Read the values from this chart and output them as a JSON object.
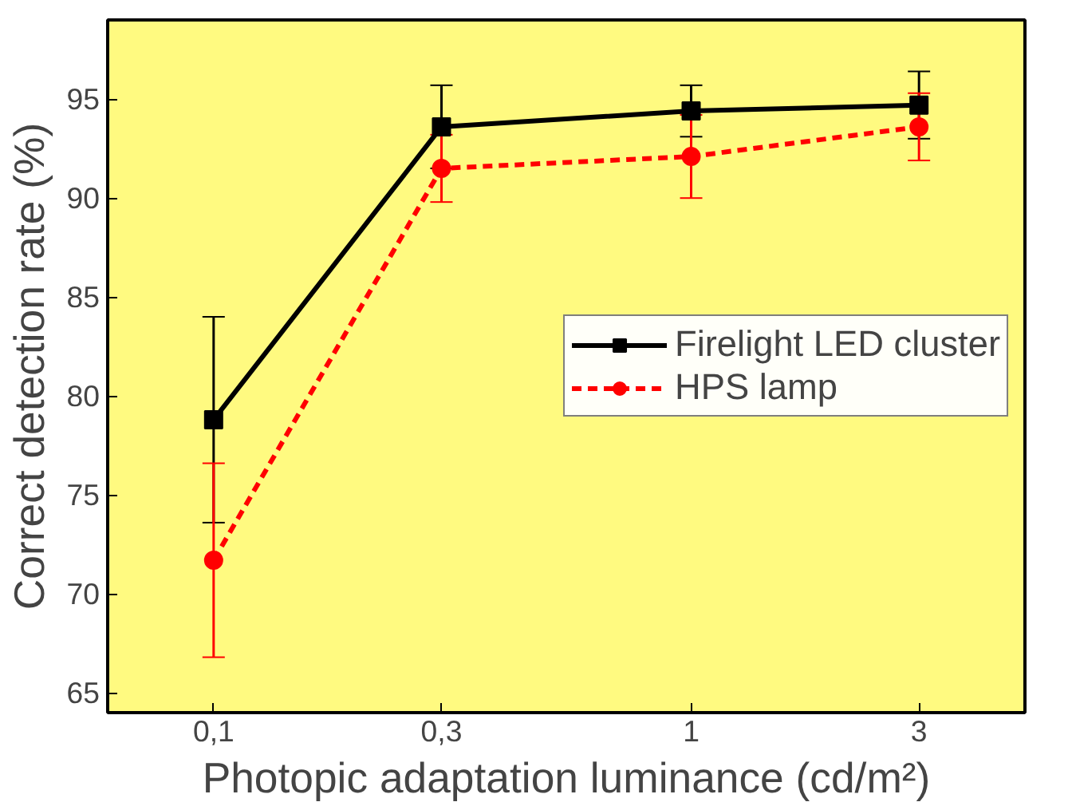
{
  "chart_data": {
    "type": "line",
    "xlabel": "Photopic adaptation luminance (cd/m²)",
    "ylabel": "Correct detection rate (%)",
    "log": "x",
    "x": [
      0.1,
      0.3,
      1,
      3
    ],
    "xlim": [
      0.06,
      5
    ],
    "xticks": [
      {
        "value": 0.1,
        "label": "0,1"
      },
      {
        "value": 0.3,
        "label": "0,3"
      },
      1,
      3
    ],
    "ylim": [
      64,
      99
    ],
    "yticks": [
      65,
      70,
      75,
      80,
      85,
      90,
      95
    ],
    "series": [
      {
        "name": "Firelight LED cluster",
        "color": "#000000",
        "values": [
          78.8,
          93.6,
          94.4,
          94.7
        ],
        "errors": [
          5.2,
          2.1,
          1.3,
          1.7
        ],
        "marker": "square",
        "line_style": "solid"
      },
      {
        "name": "HPS lamp",
        "color": "#ff0000",
        "values": [
          71.7,
          91.5,
          92.1,
          93.6
        ],
        "errors": [
          4.9,
          1.7,
          2.1,
          1.7
        ],
        "marker": "circle",
        "line_style": "dashed"
      }
    ],
    "legend": "right",
    "grid": false
  }
}
